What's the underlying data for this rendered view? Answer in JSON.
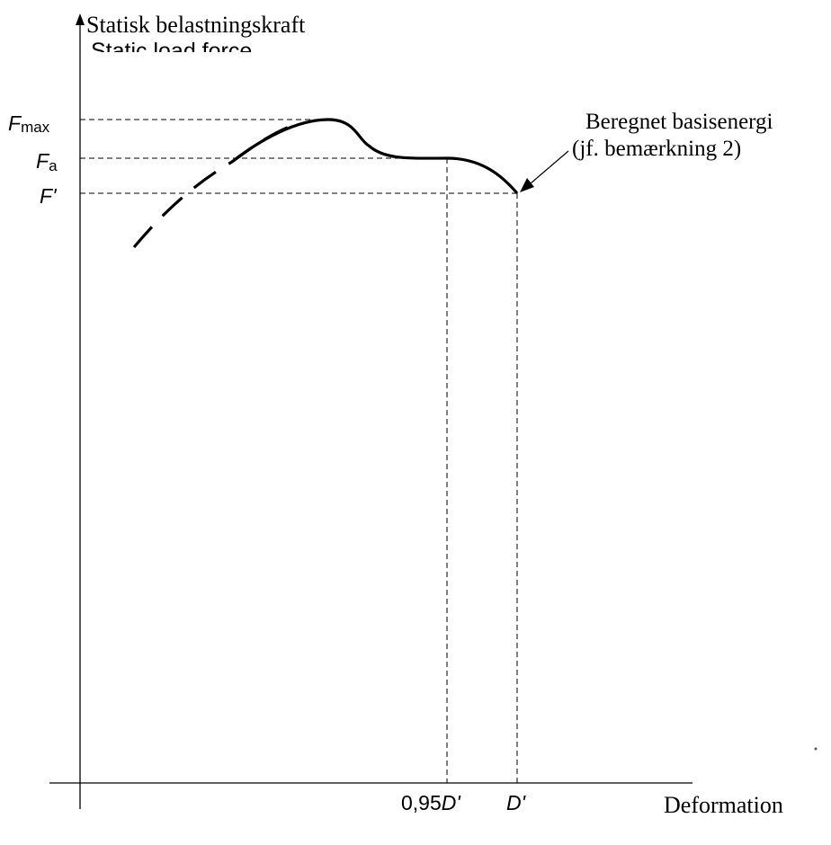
{
  "diagram": {
    "y_axis_label": "Statisk belastningskraft",
    "y_axis_label_overprint": "Static load force",
    "x_axis_label": "Deformation",
    "y_ticks": {
      "fmax": {
        "base": "F",
        "sub": "max"
      },
      "fa": {
        "base": "F",
        "sub": "a"
      },
      "fprime": {
        "base": "F",
        "suffix": "'"
      }
    },
    "x_ticks": {
      "d095": {
        "prefix": "0,95",
        "italic": "D",
        "suffix": "'"
      },
      "dprime": {
        "italic": "D",
        "suffix": "'"
      }
    },
    "annotation": {
      "line1": "Beregnet basisenergi",
      "line2": "(jf. bemærkning 2)"
    },
    "colors": {
      "line": "#000000",
      "background": "#ffffff"
    }
  }
}
